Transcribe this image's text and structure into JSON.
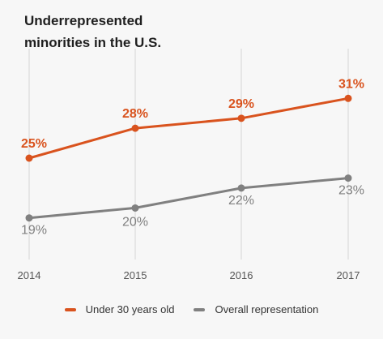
{
  "chart_data": {
    "type": "line",
    "title_lines": [
      "Underrepresented",
      "minorities in the U.S."
    ],
    "x": [
      "2014",
      "2015",
      "2016",
      "2017"
    ],
    "xlabel": "",
    "ylabel": "",
    "ylim": [
      15,
      35
    ],
    "grid": false,
    "legend_position": "bottom",
    "series": [
      {
        "name": "Under 30 years old",
        "color": "#d9531e",
        "values": [
          25,
          28,
          29,
          31
        ],
        "labels": [
          "25%",
          "28%",
          "29%",
          "31%"
        ]
      },
      {
        "name": "Overall representation",
        "color": "#808080",
        "values": [
          19,
          20,
          22,
          23
        ],
        "labels": [
          "19%",
          "20%",
          "22%",
          "23%"
        ]
      }
    ]
  },
  "colors": {
    "background": "#f7f7f7",
    "guide_line": "#e6e6e6",
    "axis_text": "#555555"
  }
}
